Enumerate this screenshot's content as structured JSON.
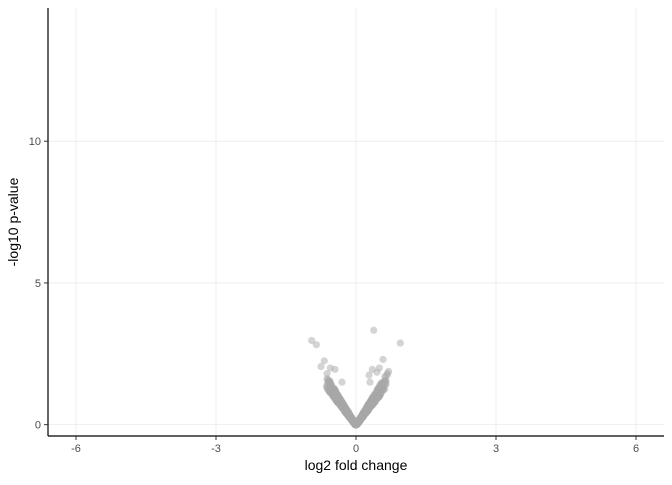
{
  "chart_data": {
    "type": "scatter",
    "title": "",
    "xlabel": "log2 fold change",
    "ylabel": "-log10 p-value",
    "xlim": [
      -6.6,
      6.6
    ],
    "ylim": [
      -0.4,
      14.7
    ],
    "x_ticks": [
      -6,
      -3,
      0,
      3,
      6
    ],
    "x_tick_labels": [
      "-6",
      "-3",
      "0",
      "3",
      "6"
    ],
    "y_ticks": [
      0,
      5,
      10
    ],
    "y_tick_labels": [
      "0",
      "5",
      "10"
    ],
    "grid": true,
    "legend": "none",
    "point_color": "#a9a9a9",
    "point_opacity": 0.45,
    "highlighted_points": [
      {
        "x": -0.95,
        "y": 2.97
      },
      {
        "x": -0.85,
        "y": 2.82
      },
      {
        "x": 0.38,
        "y": 3.33
      },
      {
        "x": 0.95,
        "y": 2.88
      },
      {
        "x": 0.58,
        "y": 2.3
      },
      {
        "x": -0.68,
        "y": 2.25
      },
      {
        "x": 0.35,
        "y": 1.95
      },
      {
        "x": 0.5,
        "y": 2.0
      },
      {
        "x": -0.55,
        "y": 2.0
      },
      {
        "x": 0.7,
        "y": 1.88
      },
      {
        "x": -0.75,
        "y": 2.05
      },
      {
        "x": -0.45,
        "y": 1.95
      },
      {
        "x": 0.28,
        "y": 1.75
      },
      {
        "x": 0.62,
        "y": 1.7
      },
      {
        "x": -0.62,
        "y": 1.8
      },
      {
        "x": 0.45,
        "y": 1.85
      },
      {
        "x": 0.3,
        "y": 1.5
      },
      {
        "x": -0.3,
        "y": 1.5
      }
    ],
    "bulk_distribution": {
      "description_shape": "v",
      "n_points": 1400,
      "x_min": -0.7,
      "x_max": 0.7,
      "slope": 2.75
    }
  },
  "colors": {
    "axis": "#000000",
    "grid": "#ebebeb",
    "tick_label": "#4d4d4d"
  }
}
